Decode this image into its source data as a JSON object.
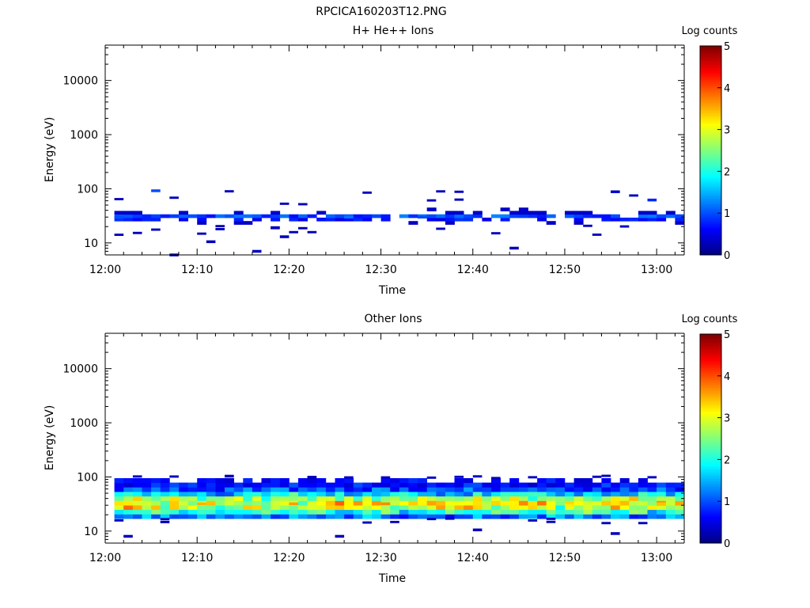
{
  "figure_title": "RPCICA160203T12.PNG",
  "colormap": [
    "#00007f",
    "#0000ff",
    "#007fff",
    "#00ffff",
    "#7fff7f",
    "#ffff00",
    "#ff7f00",
    "#ff0000",
    "#7f0000"
  ],
  "chart_data": [
    {
      "type": "heatmap",
      "title": "H+ He++ Ions",
      "xlabel": "Time",
      "ylabel": "Energy (eV)",
      "x_range_minutes": [
        0,
        63
      ],
      "x_ticks": [
        "12:00",
        "12:10",
        "12:20",
        "12:30",
        "12:40",
        "12:50",
        "13:00"
      ],
      "y_scale": "log",
      "y_range": [
        6,
        45000
      ],
      "y_ticks": [
        "10",
        "100",
        "1000",
        "10000"
      ],
      "colorbar": {
        "label": "Log counts",
        "range": [
          0,
          5
        ],
        "ticks": [
          "0",
          "1",
          "2",
          "3",
          "4",
          "5"
        ]
      },
      "band": {
        "energy_range_eV": [
          22,
          45
        ],
        "peak_log_counts": 1.3
      },
      "samples": [
        {
          "t_min": 1,
          "energy_eV": 30,
          "log_counts": 1.0
        },
        {
          "t_min": 5,
          "energy_eV": 92,
          "log_counts": 1.0
        },
        {
          "t_min": 7,
          "energy_eV": 6,
          "log_counts": 0.3
        },
        {
          "t_min": 11,
          "energy_eV": 10.5,
          "log_counts": 0.3
        },
        {
          "t_min": 16,
          "energy_eV": 7,
          "log_counts": 0.3
        },
        {
          "t_min": 19,
          "energy_eV": 13,
          "log_counts": 0.3
        },
        {
          "t_min": 26,
          "energy_eV": 30,
          "log_counts": 1.2
        },
        {
          "t_min": 34,
          "energy_eV": 30,
          "log_counts": 1.0
        },
        {
          "t_min": 44,
          "energy_eV": 8,
          "log_counts": 0.3
        },
        {
          "t_min": 55,
          "energy_eV": 88,
          "log_counts": 0.8
        },
        {
          "t_min": 59,
          "energy_eV": 62,
          "log_counts": 0.8
        }
      ]
    },
    {
      "type": "heatmap",
      "title": "Other Ions",
      "xlabel": "Time",
      "ylabel": "Energy (eV)",
      "x_range_minutes": [
        0,
        63
      ],
      "x_ticks": [
        "12:00",
        "12:10",
        "12:20",
        "12:30",
        "12:40",
        "12:50",
        "13:00"
      ],
      "y_scale": "log",
      "y_range": [
        6,
        45000
      ],
      "y_ticks": [
        "10",
        "100",
        "1000",
        "10000"
      ],
      "colorbar": {
        "label": "Log counts",
        "range": [
          0,
          5
        ],
        "ticks": [
          "0",
          "1",
          "2",
          "3",
          "4",
          "5"
        ]
      },
      "band": {
        "energy_range_eV": [
          17,
          95
        ],
        "peak_energy_eV": 32,
        "peak_log_counts": 3.7
      },
      "samples": [
        {
          "t_min": 2,
          "energy_eV": 8,
          "log_counts": 0.3
        },
        {
          "t_min": 10,
          "energy_eV": 32,
          "log_counts": 3.5
        },
        {
          "t_min": 20,
          "energy_eV": 32,
          "log_counts": 3.6
        },
        {
          "t_min": 25,
          "energy_eV": 8,
          "log_counts": 0.3
        },
        {
          "t_min": 30,
          "energy_eV": 32,
          "log_counts": 3.7
        },
        {
          "t_min": 40,
          "energy_eV": 10.5,
          "log_counts": 0.3
        },
        {
          "t_min": 50,
          "energy_eV": 30,
          "log_counts": 3.2
        },
        {
          "t_min": 55,
          "energy_eV": 9,
          "log_counts": 0.3
        },
        {
          "t_min": 60,
          "energy_eV": 32,
          "log_counts": 3.4
        }
      ]
    }
  ]
}
